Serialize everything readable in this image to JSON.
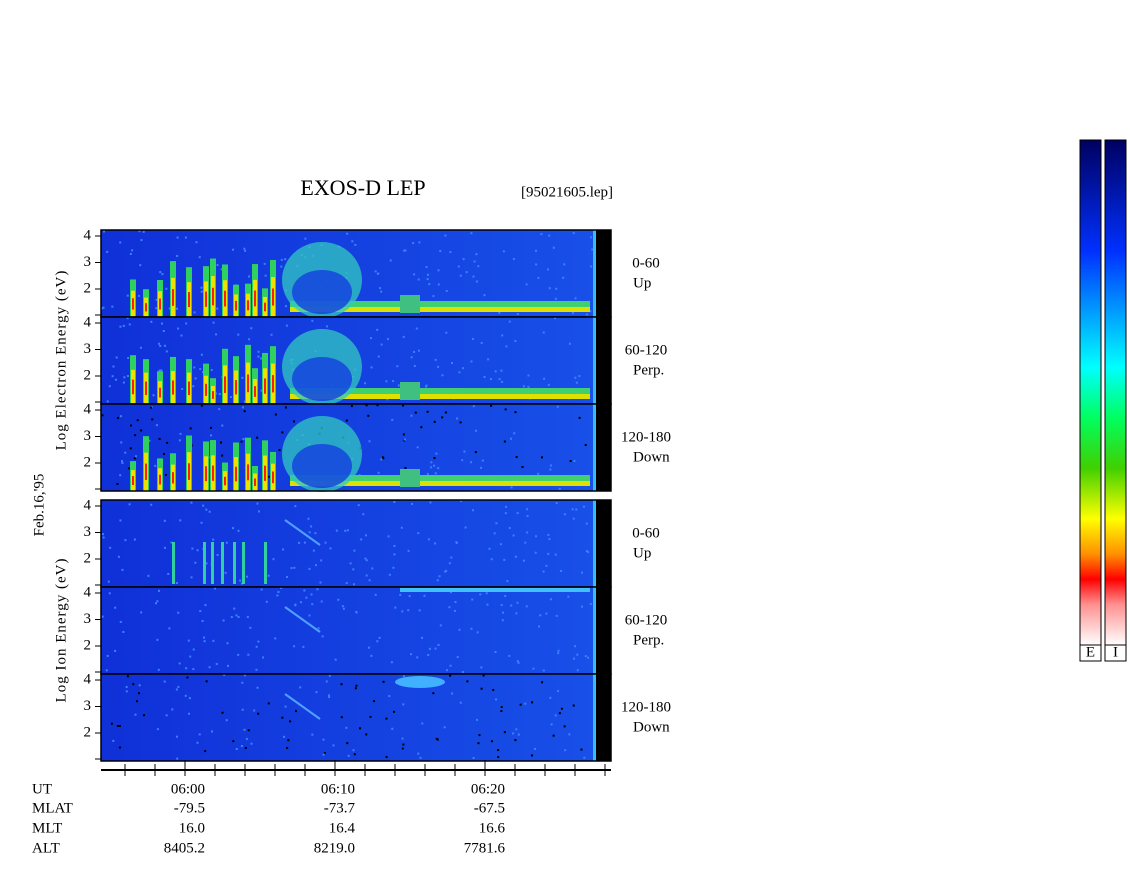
{
  "header": {
    "title": "EXOS-D LEP",
    "file": "[95021605.lep]"
  },
  "date": "Feb.16,'95",
  "species_labels": [
    "Log Electron Energy (eV)",
    "Log Ion Energy (eV)"
  ],
  "panels": [
    {
      "range": "0-60",
      "direction": "Up",
      "yticks": [
        4,
        3,
        2
      ]
    },
    {
      "range": "60-120",
      "direction": "Perp.",
      "yticks": [
        4,
        3,
        2
      ]
    },
    {
      "range": "120-180",
      "direction": "Down",
      "yticks": [
        4,
        3,
        2
      ]
    },
    {
      "range": "0-60",
      "direction": "Up",
      "yticks": [
        4,
        3,
        2
      ]
    },
    {
      "range": "60-120",
      "direction": "Perp.",
      "yticks": [
        4,
        3,
        2
      ]
    },
    {
      "range": "120-180",
      "direction": "Down",
      "yticks": [
        4,
        3,
        2
      ]
    }
  ],
  "ephemeris": {
    "labels": [
      "UT",
      "MLAT",
      "MLT",
      "ALT"
    ],
    "columns": [
      [
        "06:00",
        "-79.5",
        "16.0",
        "8405.2"
      ],
      [
        "06:10",
        "-73.7",
        "16.4",
        "8219.0"
      ],
      [
        "06:20",
        "-67.5",
        "16.6",
        "7781.6"
      ]
    ]
  },
  "colorbars": [
    "E",
    "I"
  ]
}
